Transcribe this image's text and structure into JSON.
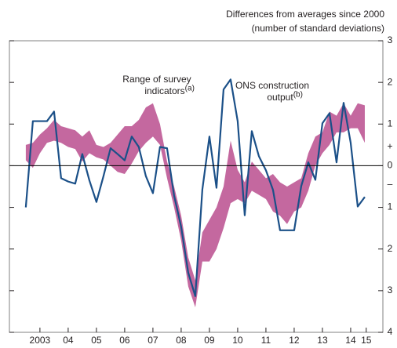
{
  "chart_data": {
    "type": "band-line",
    "subtitle": [
      "Differences from averages since 2000",
      "(number of standard deviations)"
    ],
    "x": [
      2003,
      2003.25,
      2003.5,
      2003.75,
      2004,
      2004.25,
      2004.5,
      2004.75,
      2005,
      2005.25,
      2005.5,
      2005.75,
      2006,
      2006.25,
      2006.5,
      2006.75,
      2007,
      2007.25,
      2007.5,
      2007.75,
      2008,
      2008.25,
      2008.5,
      2008.75,
      2009,
      2009.25,
      2009.5,
      2009.75,
      2010,
      2010.25,
      2010.5,
      2010.75,
      2011,
      2011.25,
      2011.5,
      2011.75,
      2012,
      2012.25,
      2012.5,
      2012.75,
      2013,
      2013.25,
      2013.5,
      2013.75,
      2014,
      2014.25,
      2014.5,
      2014.75,
      2015
    ],
    "series": [
      {
        "type": "band",
        "color": "#c4689f",
        "label_lines": [
          "Range of survey",
          "indicators"
        ],
        "note": "(a)",
        "high": [
          0.5,
          0.55,
          0.75,
          0.9,
          1.1,
          0.95,
          0.9,
          0.85,
          0.7,
          0.85,
          0.5,
          0.45,
          0.55,
          0.75,
          0.95,
          0.95,
          1.1,
          1.4,
          1.5,
          1.0,
          0.1,
          -0.5,
          -1.2,
          -2.2,
          -2.75,
          -1.6,
          -1.3,
          -1.0,
          -0.5,
          0.6,
          -0.1,
          -0.4,
          0.1,
          -0.1,
          -0.3,
          -0.2,
          -0.4,
          -0.5,
          -0.4,
          -0.3,
          0.3,
          0.7,
          0.8,
          1.3,
          1.2,
          1.5,
          1.2,
          1.5,
          1.45
        ],
        "low": [
          0.13,
          -0.05,
          0.3,
          0.55,
          0.6,
          0.55,
          0.45,
          0.4,
          0.1,
          0.3,
          0.2,
          0.15,
          0.0,
          -0.15,
          -0.2,
          0.05,
          0.35,
          0.55,
          0.7,
          0.5,
          -0.3,
          -1.0,
          -1.8,
          -2.9,
          -3.4,
          -2.3,
          -2.3,
          -2.0,
          -1.5,
          -0.9,
          -0.8,
          -0.9,
          -0.6,
          -0.7,
          -0.8,
          -1.1,
          -1.2,
          -1.4,
          -1.1,
          -1.0,
          -0.6,
          0.0,
          0.3,
          0.5,
          0.8,
          0.8,
          0.9,
          0.9,
          0.55
        ]
      },
      {
        "type": "line",
        "color": "#1b5088",
        "label_lines": [
          "ONS construction",
          "output"
        ],
        "note": "(b)",
        "values": [
          -1.0,
          1.07,
          1.07,
          1.07,
          1.3,
          -0.3,
          -0.38,
          -0.43,
          0.28,
          -0.35,
          -0.87,
          -0.25,
          0.42,
          0.28,
          0.13,
          0.7,
          0.45,
          -0.25,
          -0.66,
          0.45,
          0.42,
          -0.72,
          -1.47,
          -2.57,
          -3.13,
          -0.57,
          0.7,
          -0.53,
          1.83,
          2.07,
          1.07,
          -1.19,
          0.83,
          0.23,
          -0.11,
          -0.58,
          -1.55,
          -1.55,
          -1.55,
          -0.49,
          0.08,
          -0.34,
          1.02,
          1.26,
          0.08,
          1.51,
          0.55,
          -0.98,
          -0.75
        ]
      }
    ],
    "xlim": [
      2002.42,
      2015.64
    ],
    "xticks": [
      {
        "value": 2003.5,
        "label": "2003"
      },
      {
        "value": 2004.5,
        "label": "04"
      },
      {
        "value": 2005.5,
        "label": "05"
      },
      {
        "value": 2006.5,
        "label": "06"
      },
      {
        "value": 2007.5,
        "label": "07"
      },
      {
        "value": 2008.5,
        "label": "08"
      },
      {
        "value": 2009.5,
        "label": "09"
      },
      {
        "value": 2010.5,
        "label": "10"
      },
      {
        "value": 2011.5,
        "label": "11"
      },
      {
        "value": 2012.5,
        "label": "12"
      },
      {
        "value": 2013.5,
        "label": "13"
      },
      {
        "value": 2014.5,
        "label": "14"
      },
      {
        "value": 2015.05,
        "label": "15"
      }
    ],
    "ylim": [
      -4,
      3
    ],
    "yticks": [
      3,
      2,
      1,
      0,
      {
        "value": -1,
        "label": "1"
      },
      {
        "value": -2,
        "label": "2"
      },
      {
        "value": -3,
        "label": "3"
      },
      {
        "value": -4,
        "label": "4"
      }
    ],
    "sign_labels": [
      {
        "value": 0.45,
        "label": "+"
      },
      {
        "value": -0.45,
        "label": "–"
      }
    ],
    "zero_line": 0
  }
}
